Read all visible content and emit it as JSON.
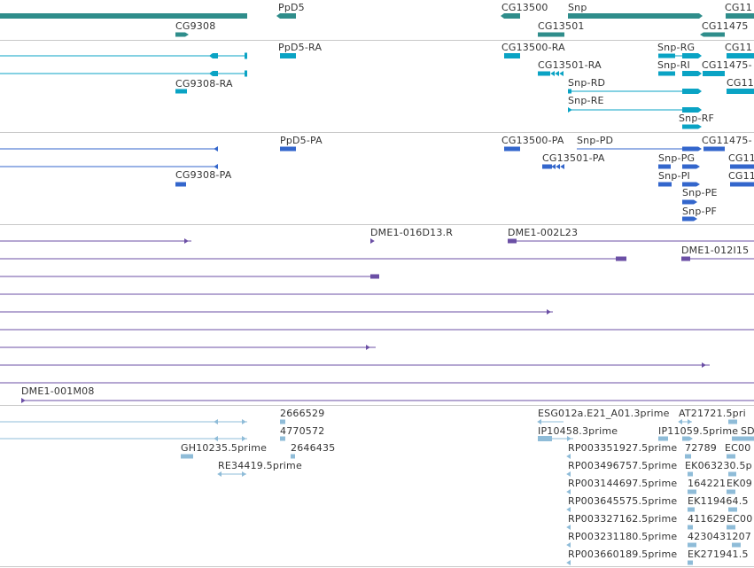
{
  "colors": {
    "gene": "#2f8d8b",
    "transcript": "#0aa3c4",
    "protein": "#3366cc",
    "clone": "#6b4fa5",
    "est": "#8fbcd8",
    "divider": "#c8c8c8",
    "text": "#333333"
  },
  "tracks": {
    "genes": {
      "labels": [
        "PpD5",
        "CG13500",
        "Snp",
        "CG11",
        "CG9308",
        "CG13501",
        "CG11475"
      ]
    },
    "transcripts": {
      "labels": [
        "PpD5-RA",
        "CG13500-RA",
        "Snp-RG",
        "CG11",
        "Snp-RI",
        "CG11475-",
        "CG9308-RA",
        "CG13501-RA",
        "Snp-RD",
        "CG11",
        "Snp-RE",
        "Snp-RF"
      ]
    },
    "proteins": {
      "labels": [
        "PpD5-PA",
        "CG13500-PA",
        "Snp-PD",
        "CG11475-",
        "CG13501-PA",
        "Snp-PG",
        "CG11",
        "CG9308-PA",
        "Snp-PI",
        "CG11",
        "Snp-PE",
        "Snp-PF"
      ]
    },
    "clones": {
      "labels": [
        "DME1-016D13.R",
        "DME1-002L23",
        "DME1-012I15",
        "DME1-001M08"
      ]
    },
    "ests": {
      "labels": [
        "2666529",
        "ESG012a.E21_A01.3prime",
        "AT21721.5pri",
        "4770572",
        "IP10458.3prime",
        "IP11059.5prime",
        "SD",
        "GH10235.5prime",
        "2646435",
        "RP003351927.5prime",
        "72789",
        "EC00",
        "RE34419.5prime",
        "RP003496757.5prime",
        "EK063230.5p",
        "RP003144697.5prime",
        "164221",
        "EK09",
        "RP003645575.5prime",
        "EK119464.5",
        "RP003327162.5prime",
        "411629",
        "EC00",
        "RP003231180.5prime",
        "4230431207",
        "RP003660189.5prime",
        "EK271941.5"
      ]
    }
  }
}
